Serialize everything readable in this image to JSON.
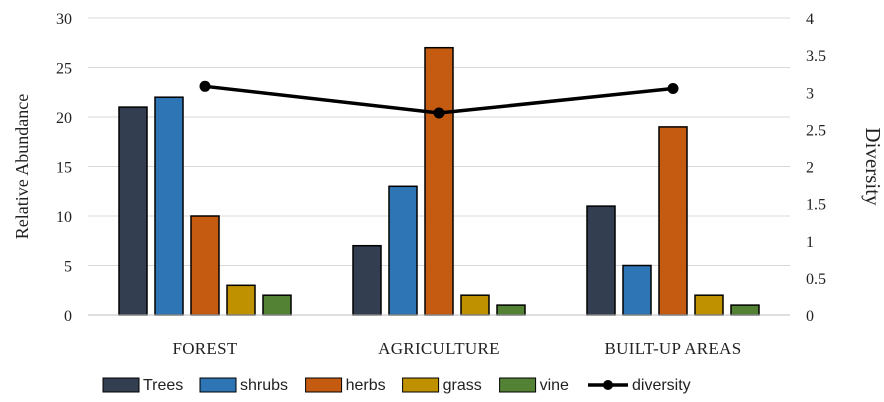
{
  "chart_data": {
    "type": "bar",
    "categories": [
      "FOREST",
      "AGRICULTURE",
      "BUILT-UP AREAS"
    ],
    "series": [
      {
        "name": "Trees",
        "color": "#333f50",
        "values": [
          21,
          7,
          11
        ]
      },
      {
        "name": "shrubs",
        "color": "#2e75b6",
        "values": [
          22,
          13,
          5
        ]
      },
      {
        "name": "herbs",
        "color": "#c55a11",
        "values": [
          10,
          27,
          19
        ]
      },
      {
        "name": "grass",
        "color": "#bf9000",
        "values": [
          3,
          2,
          2
        ]
      },
      {
        "name": "vine",
        "color": "#548235",
        "values": [
          2,
          1,
          1
        ]
      }
    ],
    "line_series": {
      "name": "diversity",
      "color": "#000000",
      "axis": "right",
      "values": [
        3.08,
        2.72,
        3.05
      ]
    },
    "ylabel": "Relative Abundance",
    "y2label": "Diversity",
    "ylim": [
      0,
      30
    ],
    "y2lim": [
      0,
      4
    ],
    "yticks": [
      "0",
      "5",
      "10",
      "15",
      "20",
      "25",
      "30"
    ],
    "y2ticks": [
      "0",
      "0.5",
      "1",
      "1.5",
      "2",
      "2.5",
      "3",
      "3.5",
      "4"
    ],
    "grid": true,
    "legend_position": "bottom"
  }
}
